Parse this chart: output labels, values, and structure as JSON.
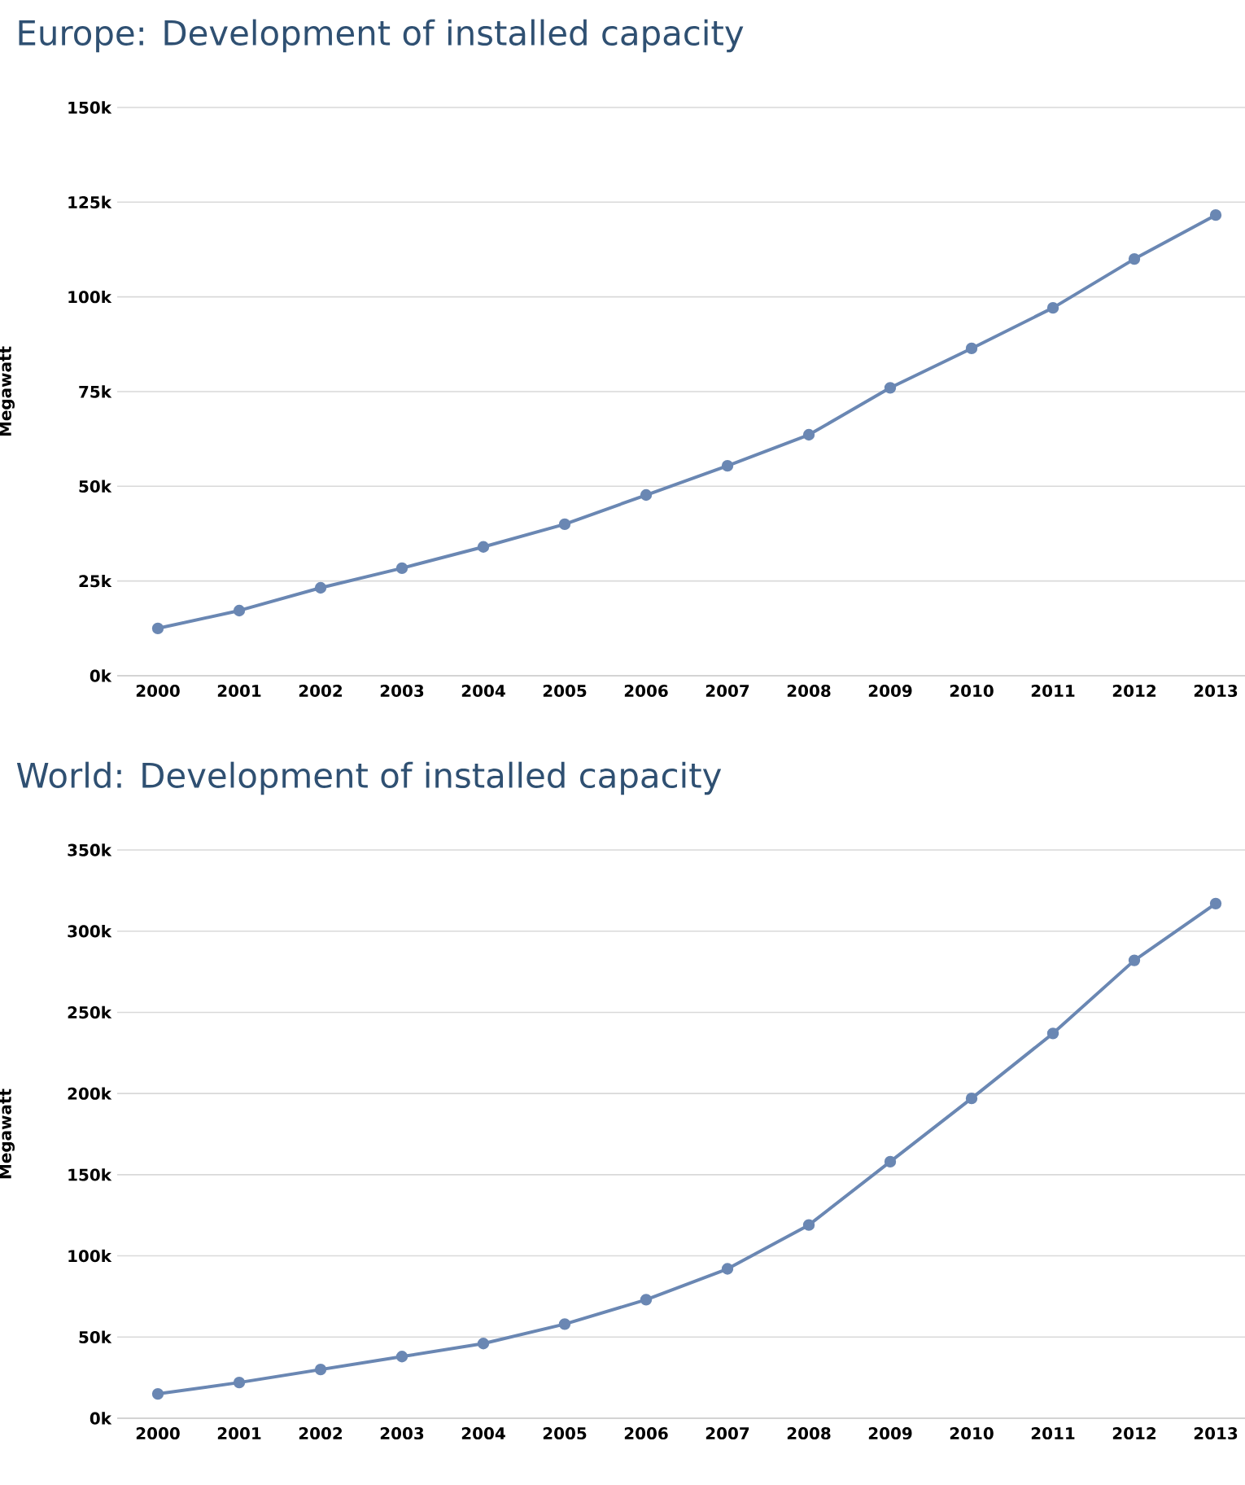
{
  "chart_data": [
    {
      "type": "line",
      "title": "Europe: Development of installed capacity",
      "ylabel": "Megawatt",
      "categories": [
        "2000",
        "2001",
        "2002",
        "2003",
        "2004",
        "2005",
        "2006",
        "2007",
        "2008",
        "2009",
        "2010",
        "2011",
        "2012",
        "2013"
      ],
      "series": [
        {
          "color": "#6a87b3",
          "values": [
            12.5,
            17.2,
            23.2,
            28.4,
            34,
            40,
            47.7,
            55.4,
            63.6,
            76,
            86.4,
            97.1,
            110,
            121.6
          ]
        }
      ],
      "ylim": [
        0,
        150
      ],
      "yticks": [
        {
          "value": 0,
          "label": "0k"
        },
        {
          "value": 25,
          "label": "25k"
        },
        {
          "value": 50,
          "label": "50k"
        },
        {
          "value": 75,
          "label": "75k"
        },
        {
          "value": 100,
          "label": "100k"
        },
        {
          "value": 125,
          "label": "125k"
        },
        {
          "value": 150,
          "label": "150k"
        }
      ],
      "grid": "y",
      "marker": "circle",
      "line_style": "solid"
    },
    {
      "type": "line",
      "title": "World: Development of installed capacity",
      "ylabel": "Megawatt",
      "categories": [
        "2000",
        "2001",
        "2002",
        "2003",
        "2004",
        "2005",
        "2006",
        "2007",
        "2008",
        "2009",
        "2010",
        "2011",
        "2012",
        "2013"
      ],
      "series": [
        {
          "color": "#6a87b3",
          "values": [
            15,
            22,
            30,
            38,
            46,
            58,
            73,
            92,
            119,
            158,
            197,
            237,
            282,
            317
          ]
        }
      ],
      "ylim": [
        0,
        350
      ],
      "yticks": [
        {
          "value": 0,
          "label": "0k"
        },
        {
          "value": 50,
          "label": "50k"
        },
        {
          "value": 100,
          "label": "100k"
        },
        {
          "value": 150,
          "label": "150k"
        },
        {
          "value": 200,
          "label": "200k"
        },
        {
          "value": 250,
          "label": "250k"
        },
        {
          "value": 300,
          "label": "300k"
        },
        {
          "value": 350,
          "label": "350k"
        }
      ],
      "grid": "y",
      "marker": "circle",
      "line_style": "solid"
    }
  ]
}
